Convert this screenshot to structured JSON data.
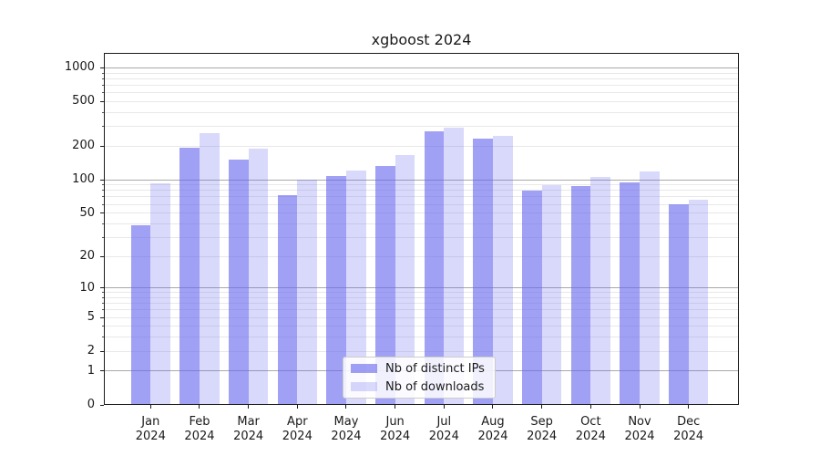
{
  "title": "xgboost 2024",
  "legend": {
    "items": [
      {
        "label": "Nb of distinct IPs",
        "color": "rgba(102,102,238,0.62)"
      },
      {
        "label": "Nb of downloads",
        "color": "rgba(102,102,238,0.25)"
      }
    ]
  },
  "colors": {
    "bar_distinct_ips": "rgba(102,102,238,0.62)",
    "bar_downloads": "rgba(102,102,238,0.25)",
    "grid_major": "#a9a9a9",
    "grid_minor": "#e8e8e8",
    "axis_frame": "#1a1a1a",
    "text": "#1a1a1a"
  },
  "chart_data": {
    "type": "bar",
    "title": "xgboost 2024",
    "categories": [
      "Jan",
      "Feb",
      "Mar",
      "Apr",
      "May",
      "Jun",
      "Jul",
      "Aug",
      "Sep",
      "Oct",
      "Nov",
      "Dec"
    ],
    "year": "2024",
    "series": [
      {
        "name": "Nb of distinct IPs",
        "values": [
          39,
          195,
          152,
          73,
          109,
          132,
          274,
          232,
          80,
          88,
          94,
          60
        ]
      },
      {
        "name": "Nb of downloads",
        "values": [
          93,
          262,
          191,
          100,
          122,
          167,
          295,
          246,
          89,
          107,
          119,
          66
        ]
      }
    ],
    "yscale": "log1p",
    "yticks": [
      0,
      1,
      2,
      5,
      10,
      20,
      50,
      100,
      200,
      500,
      1000
    ],
    "ylim": [
      0,
      1350
    ],
    "xlabel": "",
    "ylabel": "",
    "grid": "both",
    "legend_position": "lower center"
  }
}
